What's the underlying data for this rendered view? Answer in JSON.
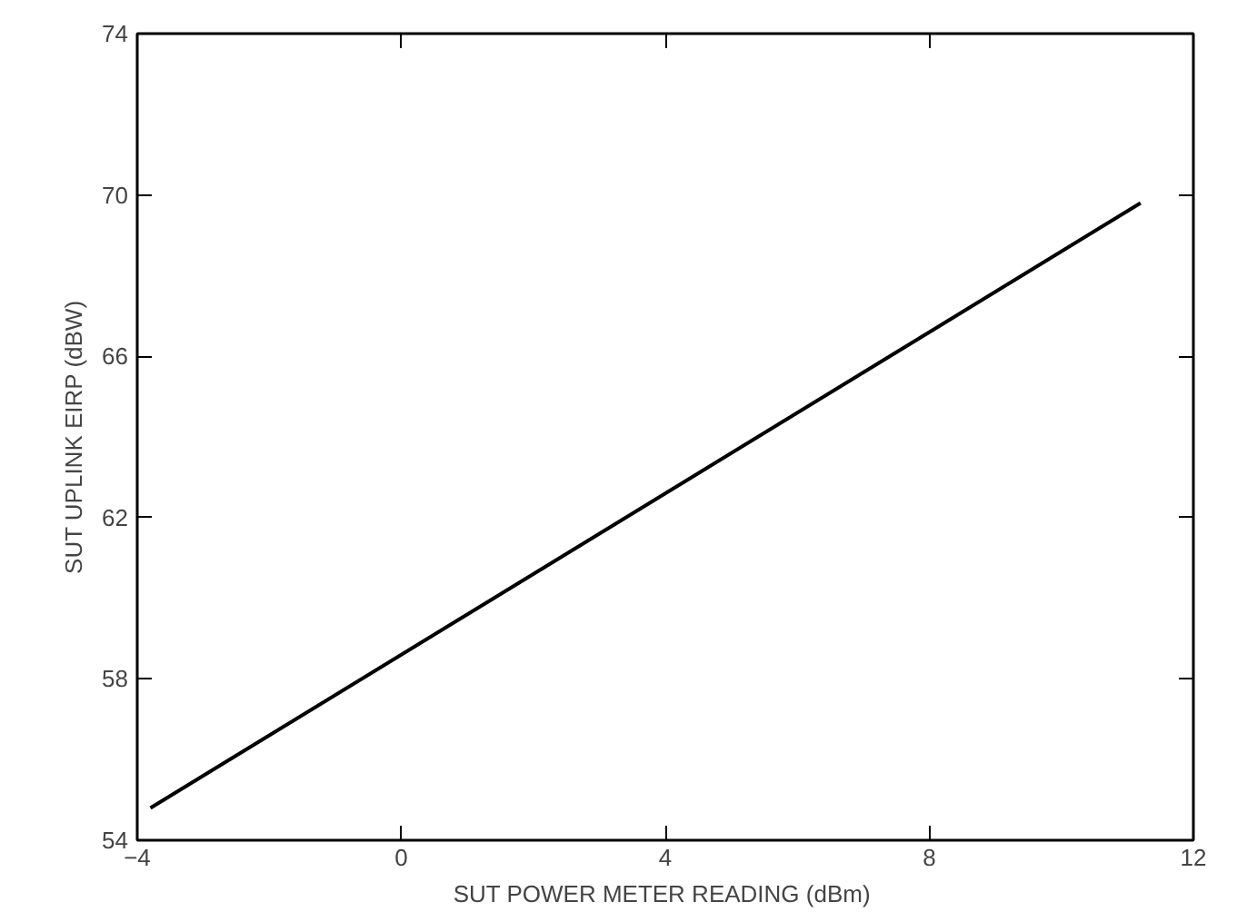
{
  "chart_data": {
    "type": "line",
    "xlabel": "SUT POWER METER READING  (dBm)",
    "ylabel": "SUT UPLINK EIRP (dBW)",
    "x": [
      -3.8,
      11.2
    ],
    "series": [
      {
        "color": "#000000",
        "values": [
          54.8,
          69.8
        ]
      }
    ],
    "xlim": [
      -4,
      12
    ],
    "xticks": [
      -4,
      0,
      4,
      8,
      12
    ],
    "ylim": [
      54,
      74
    ],
    "yticks": [
      54,
      58,
      62,
      66,
      70,
      74
    ],
    "grid": false,
    "line_style": "solid",
    "marker": "none"
  }
}
